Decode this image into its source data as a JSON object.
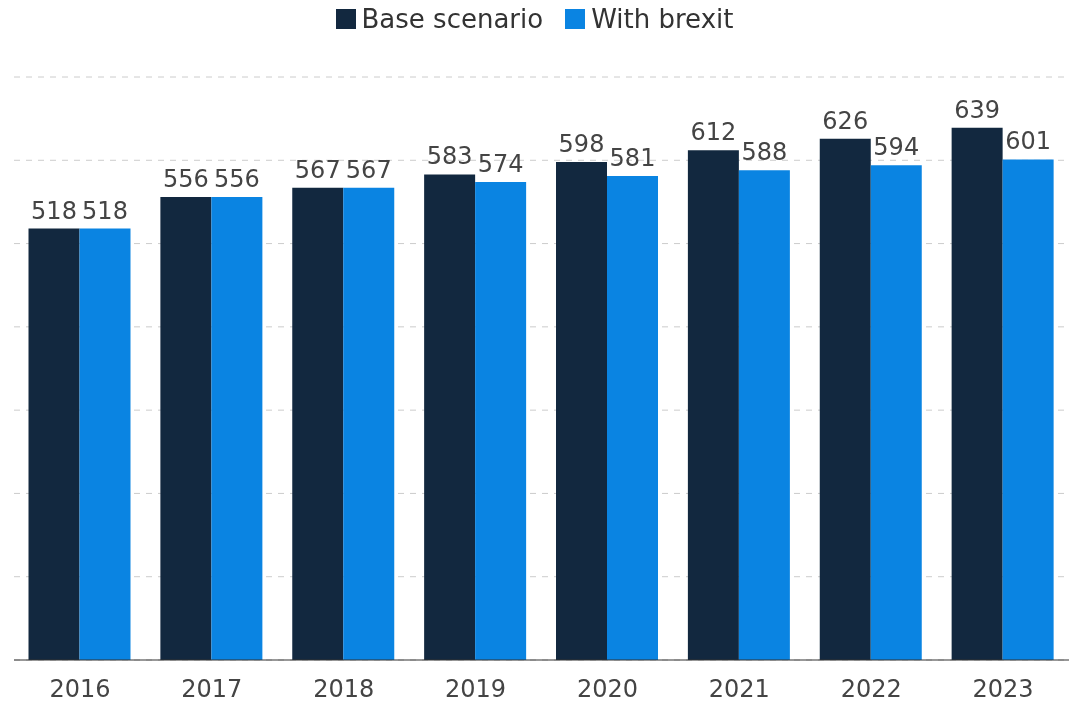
{
  "chart_data": {
    "type": "bar",
    "categories": [
      "2016",
      "2017",
      "2018",
      "2019",
      "2020",
      "2021",
      "2022",
      "2023"
    ],
    "series": [
      {
        "name": "Base scenario",
        "color": "#12283f",
        "values": [
          518,
          556,
          567,
          583,
          598,
          612,
          626,
          639
        ]
      },
      {
        "name": "With brexit",
        "color": "#0a84e2",
        "values": [
          518,
          556,
          567,
          574,
          581,
          588,
          594,
          601
        ]
      }
    ],
    "ylim": [
      0,
      700
    ],
    "yticks": [
      {
        "value": 0,
        "label": null
      },
      {
        "value": 100,
        "label": null
      },
      {
        "value": 200,
        "label": null
      },
      {
        "value": 300,
        "label": null
      },
      {
        "value": 400,
        "label": null
      },
      {
        "value": 500,
        "label": null
      },
      {
        "value": 600,
        "label": null
      },
      {
        "value": 700,
        "label": null
      }
    ],
    "tick_labels": "x",
    "grid": "y",
    "legend": "top",
    "data_labels": true
  }
}
